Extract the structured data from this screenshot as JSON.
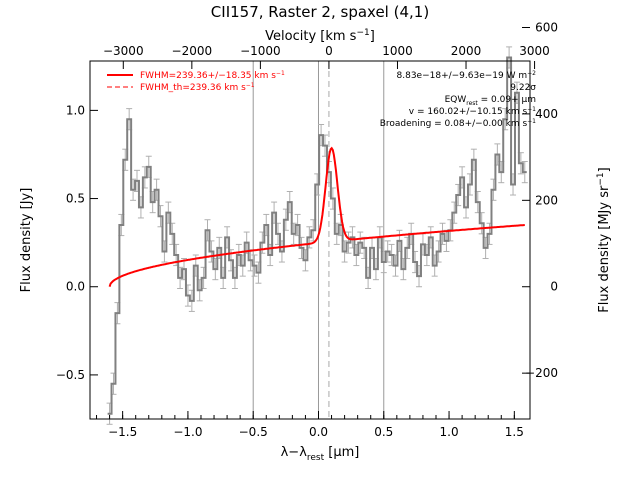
{
  "title": "CII157, Raster 2, spaxel (4,1)",
  "axes": {
    "bottom_label": "λ−λ",
    "bottom_label_sub": "rest",
    "bottom_label_unit": " [μm]",
    "left_label": "Flux density [Jy]",
    "top_label": "Velocity [km s",
    "top_label_sup": "−1",
    "top_label_end": "]",
    "right_label": "Flux density [MJy sr",
    "right_label_sup": "−1",
    "right_label_end": "]"
  },
  "legend": {
    "fit": "FWHM=239.36+/−18.35 km s",
    "fit_sup": "−1",
    "th": "FWHM_th=239.36 km s",
    "th_sup": "−1"
  },
  "annotations": {
    "line1": "8.83e−18+/−9.63e−19 W m",
    "line1_sup": "−2",
    "line2": "9.22σ",
    "line3": "EQW",
    "line3_sub": "rest",
    "line3_end": " = 0.09+ μm",
    "line4": "v = 160.02+/−10.15 km s",
    "line4_sup": "−1",
    "line5": "Broadening = 0.08+/−0.00 km s",
    "line5_sup": "−1"
  },
  "colors": {
    "data": "#808080",
    "fit": "#ff0000",
    "errorbar": "#b0b0b0",
    "axis": "#000000"
  },
  "chart_data": {
    "type": "line",
    "title": "CII157, Raster 2, spaxel (4,1)",
    "xlabel": "λ−λrest [μm]",
    "ylabel": "Flux density [Jy]",
    "xlim": [
      -1.75,
      1.62
    ],
    "ylim": [
      -0.75,
      1.28
    ],
    "top_axis": {
      "label": "Velocity [km s−1]",
      "ticks": [
        -3000,
        -2000,
        -1000,
        0,
        1000,
        2000,
        3000
      ]
    },
    "right_axis": {
      "label": "Flux density [MJy sr−1]",
      "ticks": [
        -200,
        0,
        200,
        400,
        600
      ]
    },
    "x_ticks": [
      -1.5,
      -1.0,
      -0.5,
      0.0,
      0.5,
      1.0,
      1.5
    ],
    "y_ticks": [
      -0.5,
      0.0,
      0.5,
      1.0
    ],
    "vertical_lines": [
      -0.5,
      0.0,
      0.5
    ],
    "rest_line": 0.08,
    "series": [
      {
        "name": "data",
        "style": "step",
        "x": [
          -1.6,
          -1.57,
          -1.54,
          -1.51,
          -1.48,
          -1.45,
          -1.42,
          -1.39,
          -1.36,
          -1.33,
          -1.3,
          -1.27,
          -1.24,
          -1.21,
          -1.18,
          -1.15,
          -1.12,
          -1.09,
          -1.06,
          -1.03,
          -1.0,
          -0.97,
          -0.94,
          -0.91,
          -0.88,
          -0.85,
          -0.82,
          -0.79,
          -0.76,
          -0.73,
          -0.7,
          -0.67,
          -0.64,
          -0.61,
          -0.58,
          -0.55,
          -0.52,
          -0.49,
          -0.46,
          -0.43,
          -0.4,
          -0.37,
          -0.34,
          -0.31,
          -0.28,
          -0.25,
          -0.22,
          -0.19,
          -0.16,
          -0.13,
          -0.1,
          -0.07,
          -0.04,
          -0.01,
          0.02,
          0.05,
          0.08,
          0.11,
          0.14,
          0.17,
          0.2,
          0.23,
          0.26,
          0.29,
          0.32,
          0.35,
          0.38,
          0.41,
          0.44,
          0.47,
          0.5,
          0.53,
          0.56,
          0.59,
          0.62,
          0.65,
          0.68,
          0.71,
          0.74,
          0.77,
          0.8,
          0.83,
          0.86,
          0.89,
          0.92,
          0.95,
          0.98,
          1.01,
          1.04,
          1.07,
          1.1,
          1.13,
          1.16,
          1.19,
          1.22,
          1.25,
          1.28,
          1.31,
          1.34,
          1.37,
          1.4,
          1.43,
          1.46,
          1.49,
          1.52,
          1.55,
          1.58
        ],
        "y": [
          -0.72,
          -0.55,
          -0.15,
          0.35,
          0.72,
          0.95,
          0.55,
          0.6,
          0.45,
          0.62,
          0.68,
          0.48,
          0.55,
          0.4,
          0.2,
          0.42,
          0.3,
          0.18,
          0.05,
          0.1,
          -0.05,
          -0.08,
          0.12,
          -0.02,
          0.05,
          0.32,
          0.2,
          0.1,
          0.22,
          0.05,
          0.28,
          0.15,
          0.05,
          0.18,
          0.12,
          0.25,
          0.15,
          0.12,
          0.08,
          0.25,
          0.35,
          0.18,
          0.42,
          0.3,
          0.2,
          0.38,
          0.48,
          0.3,
          0.35,
          0.22,
          0.15,
          0.28,
          0.32,
          0.58,
          0.86,
          0.8,
          0.65,
          0.5,
          0.3,
          0.35,
          0.2,
          0.25,
          0.28,
          0.18,
          0.25,
          0.22,
          0.05,
          0.22,
          0.1,
          0.28,
          0.14,
          0.2,
          0.18,
          0.12,
          0.26,
          0.1,
          0.22,
          0.3,
          0.14,
          0.06,
          0.24,
          0.18,
          0.28,
          0.12,
          0.2,
          0.3,
          0.26,
          0.32,
          0.42,
          0.52,
          0.62,
          0.45,
          0.58,
          0.72,
          0.48,
          0.36,
          0.22,
          0.3,
          0.55,
          0.75,
          0.65,
          0.95,
          1.3,
          0.58,
          1.1,
          0.7,
          0.65
        ],
        "err": 0.06
      },
      {
        "name": "fit",
        "style": "line",
        "continuum_start": 0.0,
        "continuum_end": 0.35,
        "gauss_center": 0.1,
        "gauss_amp": 0.53,
        "gauss_sigma": 0.045
      }
    ]
  }
}
